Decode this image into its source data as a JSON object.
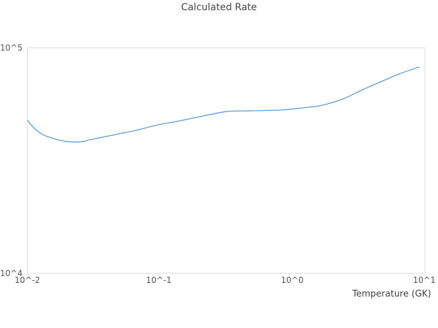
{
  "title": "Calculated Rate",
  "colors": {
    "background": "#ffffff",
    "line": "#5b9bd5",
    "plot_border": "#d9d9d9",
    "tick_text": "#555555",
    "title_text": "#444444"
  },
  "chart_data": {
    "type": "line",
    "title": "Calculated Rate",
    "xlabel": "Temperature (GK)",
    "ylabel": "",
    "xscale": "log",
    "yscale": "log",
    "xlim": [
      0.01,
      10
    ],
    "ylim": [
      10000,
      100000
    ],
    "x_tick_labels": [
      "10^-2",
      "10^-1",
      "10^0",
      "10^1"
    ],
    "y_tick_labels": [
      "10^4",
      "10^5"
    ],
    "grid": false,
    "legend": false,
    "series": [
      {
        "name": "Calculated Rate",
        "x": [
          0.01,
          0.0112,
          0.0131,
          0.016,
          0.02,
          0.023,
          0.027,
          0.029,
          0.043,
          0.065,
          0.096,
          0.14,
          0.21,
          0.32,
          0.45,
          0.65,
          0.82,
          1.05,
          1.32,
          1.67,
          2.4,
          3.5,
          5.3,
          6.4,
          7.9,
          9.0
        ],
        "y": [
          47700,
          44200,
          41200,
          39500,
          38400,
          38200,
          38500,
          39000,
          40900,
          43000,
          45500,
          47400,
          49800,
          52200,
          52500,
          52800,
          53000,
          53700,
          54500,
          55600,
          59300,
          65800,
          73100,
          76700,
          80000,
          82200
        ]
      }
    ]
  }
}
